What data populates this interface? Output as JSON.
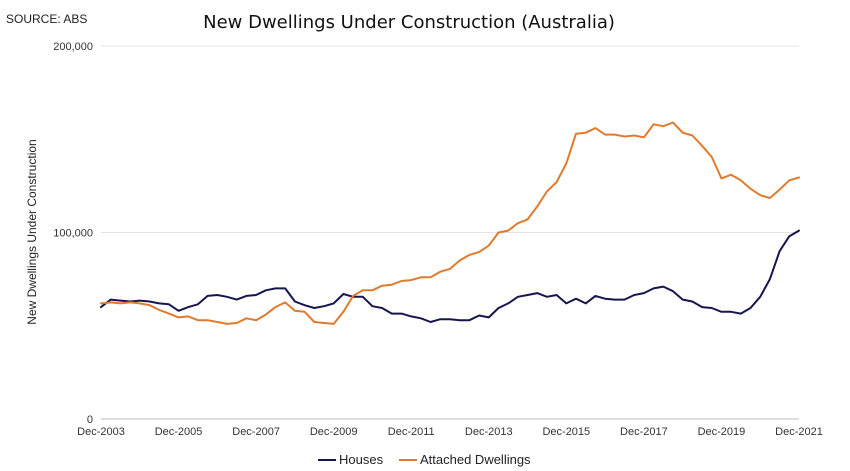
{
  "source_note": "SOURCE: ABS",
  "chart_data": {
    "type": "line",
    "title": "New Dwellings Under Construction (Australia)",
    "xlabel": "",
    "ylabel": "New Dwellings Under Construction",
    "ylim": [
      0,
      200000
    ],
    "y_ticks": [
      0,
      100000,
      200000
    ],
    "y_tick_labels": [
      "0",
      "100,000",
      "200,000"
    ],
    "x_ticks": [
      "Dec-2003",
      "Dec-2005",
      "Dec-2007",
      "Dec-2009",
      "Dec-2011",
      "Dec-2013",
      "Dec-2015",
      "Dec-2017",
      "Dec-2019",
      "Dec-2021"
    ],
    "grid": "horizontal",
    "legend_position": "bottom",
    "x": [
      "Dec-2003",
      "Mar-2004",
      "Jun-2004",
      "Sep-2004",
      "Dec-2004",
      "Mar-2005",
      "Jun-2005",
      "Sep-2005",
      "Dec-2005",
      "Mar-2006",
      "Jun-2006",
      "Sep-2006",
      "Dec-2006",
      "Mar-2007",
      "Jun-2007",
      "Sep-2007",
      "Dec-2007",
      "Mar-2008",
      "Jun-2008",
      "Sep-2008",
      "Dec-2008",
      "Mar-2009",
      "Jun-2009",
      "Sep-2009",
      "Dec-2009",
      "Mar-2010",
      "Jun-2010",
      "Sep-2010",
      "Dec-2010",
      "Mar-2011",
      "Jun-2011",
      "Sep-2011",
      "Dec-2011",
      "Mar-2012",
      "Jun-2012",
      "Sep-2012",
      "Dec-2012",
      "Mar-2013",
      "Jun-2013",
      "Sep-2013",
      "Dec-2013",
      "Mar-2014",
      "Jun-2014",
      "Sep-2014",
      "Dec-2014",
      "Mar-2015",
      "Jun-2015",
      "Sep-2015",
      "Dec-2015",
      "Mar-2016",
      "Jun-2016",
      "Sep-2016",
      "Dec-2016",
      "Mar-2017",
      "Jun-2017",
      "Sep-2017",
      "Dec-2017",
      "Mar-2018",
      "Jun-2018",
      "Sep-2018",
      "Dec-2018",
      "Mar-2019",
      "Jun-2019",
      "Sep-2019",
      "Dec-2019",
      "Mar-2020",
      "Jun-2020",
      "Sep-2020",
      "Dec-2020",
      "Mar-2021",
      "Jun-2021",
      "Sep-2021",
      "Dec-2021"
    ],
    "series": [
      {
        "name": "Houses",
        "color": "#16164d",
        "values": [
          60000,
          64000,
          63500,
          63000,
          63500,
          63000,
          62000,
          61500,
          58000,
          60000,
          61500,
          66000,
          66500,
          65500,
          64000,
          66000,
          66500,
          69000,
          70000,
          70000,
          63000,
          61000,
          59500,
          60500,
          62000,
          67000,
          65500,
          65500,
          60500,
          59500,
          56500,
          56500,
          55000,
          54000,
          52000,
          53500,
          53500,
          53000,
          53000,
          55500,
          54500,
          59500,
          62000,
          65500,
          66500,
          67500,
          65500,
          66500,
          62000,
          64500,
          62000,
          66000,
          64500,
          64000,
          64000,
          66500,
          67500,
          70000,
          71000,
          68500,
          64000,
          63000,
          60000,
          59500,
          57500,
          57500,
          56500,
          59500,
          65500,
          75000,
          90000,
          98000,
          101000
        ]
      },
      {
        "name": "Attached Dwellings",
        "color": "#e07a2e",
        "values": [
          62000,
          62500,
          62000,
          62500,
          62000,
          61000,
          58500,
          56500,
          54500,
          55000,
          53000,
          53000,
          52000,
          51000,
          51500,
          54000,
          53000,
          56000,
          60000,
          62500,
          58000,
          57500,
          52000,
          51500,
          51000,
          57500,
          66000,
          69000,
          69000,
          71500,
          72000,
          74000,
          74500,
          76000,
          76000,
          79000,
          80500,
          85000,
          88000,
          89500,
          93000,
          100000,
          101000,
          105000,
          107000,
          114000,
          122000,
          127000,
          137000,
          153000,
          153500,
          156000,
          152500,
          152500,
          151500,
          152000,
          151000,
          158000,
          157000,
          159000,
          153500,
          152000,
          146500,
          140500,
          129000,
          131000,
          128000,
          123500,
          120000,
          118500,
          123000,
          128000,
          129500
        ]
      }
    ]
  }
}
